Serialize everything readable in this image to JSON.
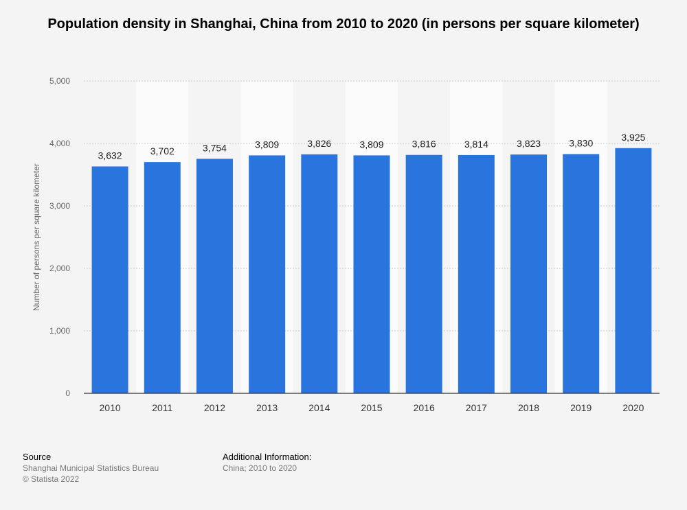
{
  "chart_data": {
    "type": "bar",
    "title": "Population density in Shanghai, China from 2010 to 2020 (in persons per square kilometer)",
    "xlabel": "",
    "ylabel": "Number of persons per square kilometer",
    "categories": [
      "2010",
      "2011",
      "2012",
      "2013",
      "2014",
      "2015",
      "2016",
      "2017",
      "2018",
      "2019",
      "2020"
    ],
    "values": [
      3632,
      3702,
      3754,
      3809,
      3826,
      3809,
      3816,
      3814,
      3823,
      3830,
      3925
    ],
    "value_labels": [
      "3,632",
      "3,702",
      "3,754",
      "3,809",
      "3,826",
      "3,809",
      "3,816",
      "3,814",
      "3,823",
      "3,830",
      "3,925"
    ],
    "ylim": [
      0,
      5000
    ],
    "yticks": [
      0,
      1000,
      2000,
      3000,
      4000,
      5000
    ],
    "ytick_labels": [
      "0",
      "1,000",
      "2,000",
      "3,000",
      "4,000",
      "5,000"
    ],
    "grid": true,
    "bar_color": "#2a74de"
  },
  "footer": {
    "source_heading": "Source",
    "source_name": "Shanghai Municipal Statistics Bureau",
    "copyright": "© Statista 2022",
    "info_heading": "Additional Information:",
    "info_text": "China; 2010 to 2020"
  }
}
